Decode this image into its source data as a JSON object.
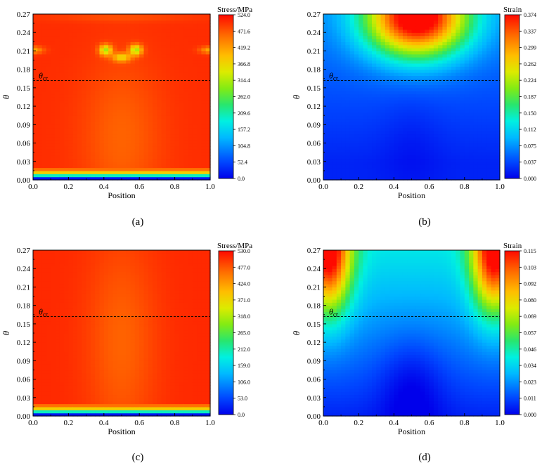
{
  "figure": {
    "panels": [
      {
        "label": "(a)",
        "xlabel": "Position",
        "ylabel": "θ",
        "colorbar_title": "Stress/MPa",
        "marker_label": "θcr",
        "marker_value": 0.162,
        "field": "stress_a"
      },
      {
        "label": "(b)",
        "xlabel": "Position",
        "ylabel": "θ",
        "colorbar_title": "Strain",
        "marker_label": "θcr",
        "marker_value": 0.162,
        "field": "strain_b"
      },
      {
        "label": "(c)",
        "xlabel": "Position",
        "ylabel": "θ",
        "colorbar_title": "Stress/MPa",
        "marker_label": "θcr",
        "marker_value": 0.162,
        "field": "stress_c"
      },
      {
        "label": "(d)",
        "xlabel": "Position",
        "ylabel": "θ",
        "colorbar_title": "Strain",
        "marker_label": "θcr",
        "marker_value": 0.162,
        "field": "strain_d"
      }
    ]
  },
  "chart_data": [
    {
      "type": "heatmap",
      "title": "(a)",
      "xlabel": "Position",
      "ylabel": "θ",
      "xlim": [
        0,
        1
      ],
      "ylim": [
        0,
        0.27
      ],
      "x_ticks": [
        "0.0",
        "0.2",
        "0.4",
        "0.6",
        "0.8",
        "1.0"
      ],
      "y_ticks": [
        "0.00",
        "0.03",
        "0.06",
        "0.09",
        "0.12",
        "0.15",
        "0.18",
        "0.21",
        "0.24",
        "0.27"
      ],
      "colorbar": {
        "title": "Stress/MPa",
        "range": [
          0,
          524
        ],
        "ticks": [
          "0.0",
          "52.4",
          "104.8",
          "157.2",
          "209.6",
          "262.0",
          "314.4",
          "366.8",
          "419.2",
          "471.6",
          "524.0"
        ]
      },
      "critical_angle": {
        "label": "θcr",
        "value": 0.162
      }
    },
    {
      "type": "heatmap",
      "title": "(b)",
      "xlabel": "Position",
      "ylabel": "θ",
      "xlim": [
        0,
        1
      ],
      "ylim": [
        0,
        0.27
      ],
      "x_ticks": [
        "0.0",
        "0.2",
        "0.4",
        "0.6",
        "0.8",
        "1.0"
      ],
      "y_ticks": [
        "0.00",
        "0.03",
        "0.06",
        "0.09",
        "0.12",
        "0.15",
        "0.18",
        "0.21",
        "0.24",
        "0.27"
      ],
      "colorbar": {
        "title": "Strain",
        "range": [
          0,
          0.374
        ],
        "ticks": [
          "0.000",
          "0.037",
          "0.075",
          "0.112",
          "0.150",
          "0.187",
          "0.224",
          "0.262",
          "0.299",
          "0.337",
          "0.374"
        ]
      },
      "critical_angle": {
        "label": "θcr",
        "value": 0.162
      }
    },
    {
      "type": "heatmap",
      "title": "(c)",
      "xlabel": "Position",
      "ylabel": "θ",
      "xlim": [
        0,
        1
      ],
      "ylim": [
        0,
        0.27
      ],
      "x_ticks": [
        "0.0",
        "0.2",
        "0.4",
        "0.6",
        "0.8",
        "1.0"
      ],
      "y_ticks": [
        "0.00",
        "0.03",
        "0.06",
        "0.09",
        "0.12",
        "0.15",
        "0.18",
        "0.21",
        "0.24",
        "0.27"
      ],
      "colorbar": {
        "title": "Stress/MPa",
        "range": [
          0,
          530
        ],
        "ticks": [
          "0.0",
          "53.0",
          "106.0",
          "159.0",
          "212.0",
          "265.0",
          "318.0",
          "371.0",
          "424.0",
          "477.0",
          "530.0"
        ]
      },
      "critical_angle": {
        "label": "θcr",
        "value": 0.162
      }
    },
    {
      "type": "heatmap",
      "title": "(d)",
      "xlabel": "Position",
      "ylabel": "θ",
      "xlim": [
        0,
        1
      ],
      "ylim": [
        0,
        0.27
      ],
      "x_ticks": [
        "0.0",
        "0.2",
        "0.4",
        "0.6",
        "0.8",
        "1.0"
      ],
      "y_ticks": [
        "0.00",
        "0.03",
        "0.06",
        "0.09",
        "0.12",
        "0.15",
        "0.18",
        "0.21",
        "0.24",
        "0.27"
      ],
      "colorbar": {
        "title": "Strain",
        "range": [
          0,
          0.115
        ],
        "ticks": [
          "0.000",
          "0.011",
          "0.023",
          "0.034",
          "0.046",
          "0.057",
          "0.069",
          "0.080",
          "0.092",
          "0.103",
          "0.115"
        ]
      },
      "critical_angle": {
        "label": "θcr",
        "value": 0.162
      }
    }
  ]
}
